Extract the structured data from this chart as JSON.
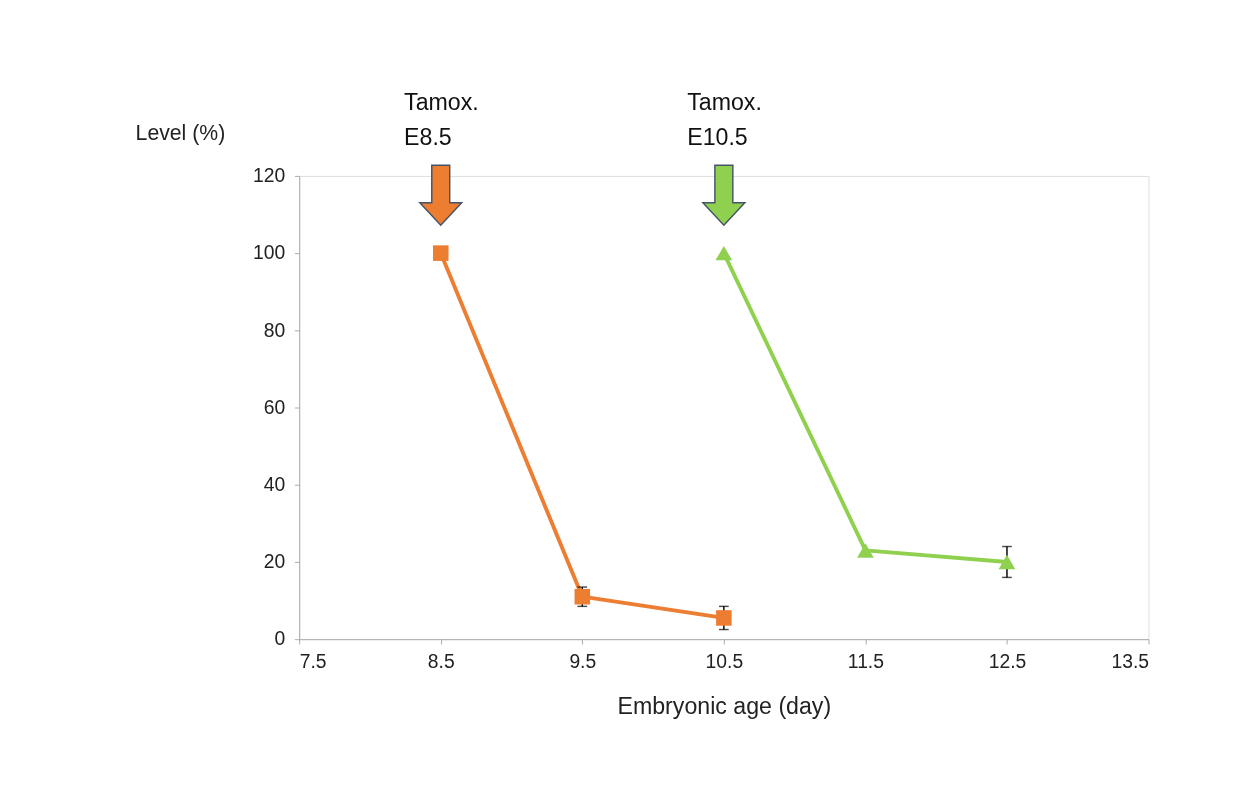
{
  "chart_data": {
    "type": "line",
    "xlabel": "Embryonic age (day)",
    "ylabel": "Level (%)",
    "xlim": [
      7.5,
      13.5
    ],
    "xticks": [
      7.5,
      8.5,
      9.5,
      10.5,
      11.5,
      12.5,
      13.5
    ],
    "ylim": [
      0,
      120
    ],
    "yticks": [
      0,
      20,
      40,
      60,
      80,
      100,
      120
    ],
    "grid": false,
    "series": [
      {
        "color": "#ed7d31",
        "marker": "square",
        "x": [
          8.5,
          9.5,
          10.5
        ],
        "values": [
          100,
          11,
          5.5
        ],
        "errors": [
          null,
          2.5,
          3
        ]
      },
      {
        "color": "#8fd14f",
        "marker": "triangle",
        "x": [
          10.5,
          11.5,
          12.5
        ],
        "values": [
          100,
          23,
          20
        ],
        "errors": [
          null,
          null,
          4
        ]
      }
    ],
    "annotations": [
      "Tamox.\nE8.5",
      "Tamox.\nE10.5"
    ]
  }
}
